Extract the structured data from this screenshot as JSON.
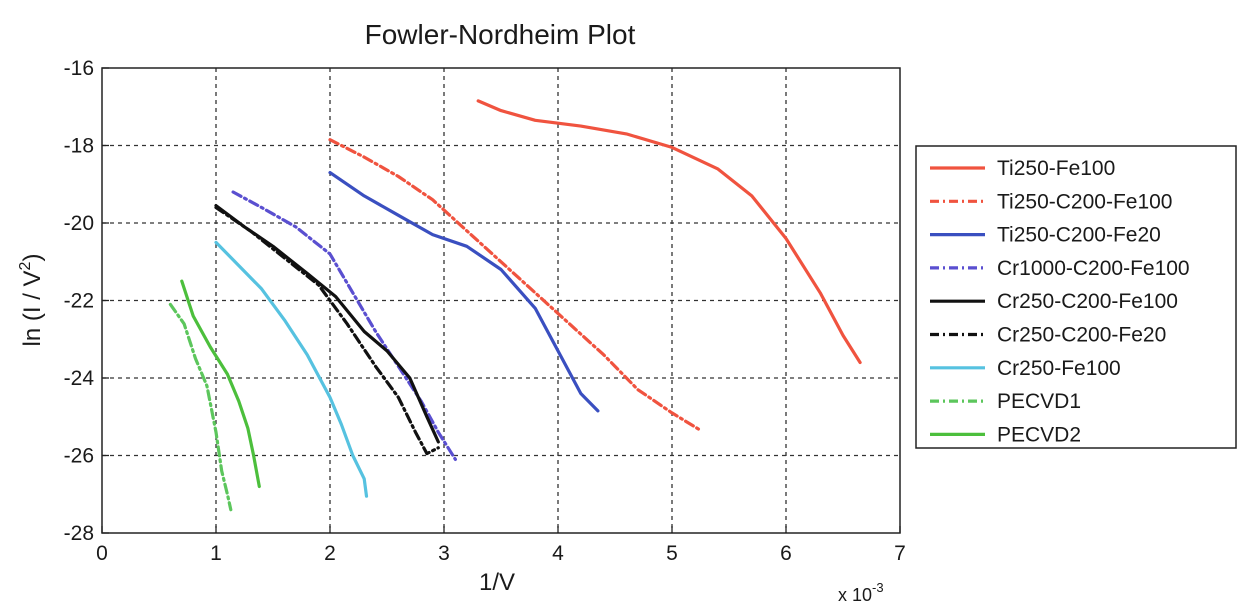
{
  "chart_data": {
    "type": "line",
    "title": "Fowler-Nordheim Plot",
    "xlabel": "1/V",
    "ylabel_main": "ln (I / V",
    "ylabel_sup": "2",
    "ylabel_end": ")",
    "x_multiplier_base": "x 10",
    "x_multiplier_exp": "-3",
    "xlim": [
      0,
      7
    ],
    "ylim": [
      -28,
      -16
    ],
    "xticks": [
      "0",
      "1",
      "2",
      "3",
      "4",
      "5",
      "6",
      "7"
    ],
    "yticks": [
      "-16",
      "-18",
      "-20",
      "-22",
      "-24",
      "-26",
      "-28"
    ],
    "grid": true,
    "legend_position": "right",
    "series": [
      {
        "name": "Ti250-Fe100",
        "color": "#f0533f",
        "dash": "solid",
        "points": [
          [
            3.3,
            -16.85
          ],
          [
            3.5,
            -17.1
          ],
          [
            3.8,
            -17.35
          ],
          [
            4.2,
            -17.5
          ],
          [
            4.6,
            -17.7
          ],
          [
            5.0,
            -18.05
          ],
          [
            5.4,
            -18.6
          ],
          [
            5.7,
            -19.3
          ],
          [
            6.0,
            -20.4
          ],
          [
            6.3,
            -21.8
          ],
          [
            6.5,
            -22.9
          ],
          [
            6.65,
            -23.6
          ]
        ]
      },
      {
        "name": "Ti250-C200-Fe100",
        "color": "#f0533f",
        "dash": "dashdot",
        "points": [
          [
            2.0,
            -17.85
          ],
          [
            2.3,
            -18.3
          ],
          [
            2.6,
            -18.8
          ],
          [
            2.9,
            -19.4
          ],
          [
            3.2,
            -20.2
          ],
          [
            3.5,
            -21.0
          ],
          [
            3.8,
            -21.8
          ],
          [
            4.1,
            -22.6
          ],
          [
            4.4,
            -23.4
          ],
          [
            4.7,
            -24.3
          ],
          [
            5.0,
            -24.9
          ],
          [
            5.25,
            -25.35
          ]
        ]
      },
      {
        "name": "Ti250-C200-Fe20",
        "color": "#3a4fc0",
        "dash": "solid",
        "points": [
          [
            2.0,
            -18.7
          ],
          [
            2.3,
            -19.3
          ],
          [
            2.6,
            -19.8
          ],
          [
            2.9,
            -20.3
          ],
          [
            3.2,
            -20.6
          ],
          [
            3.5,
            -21.2
          ],
          [
            3.8,
            -22.2
          ],
          [
            4.0,
            -23.3
          ],
          [
            4.2,
            -24.4
          ],
          [
            4.35,
            -24.85
          ]
        ]
      },
      {
        "name": "Cr1000-C200-Fe100",
        "color": "#5a4fd0",
        "dash": "dashdot",
        "points": [
          [
            1.15,
            -19.2
          ],
          [
            1.4,
            -19.6
          ],
          [
            1.7,
            -20.1
          ],
          [
            2.0,
            -20.8
          ],
          [
            2.2,
            -21.8
          ],
          [
            2.4,
            -22.8
          ],
          [
            2.6,
            -23.7
          ],
          [
            2.8,
            -24.6
          ],
          [
            2.95,
            -25.4
          ],
          [
            3.1,
            -26.1
          ]
        ]
      },
      {
        "name": "Cr250-C200-Fe100",
        "color": "#111111",
        "dash": "solid",
        "points": [
          [
            1.0,
            -19.55
          ],
          [
            1.25,
            -20.1
          ],
          [
            1.5,
            -20.6
          ],
          [
            1.8,
            -21.3
          ],
          [
            2.05,
            -21.9
          ],
          [
            2.3,
            -22.8
          ],
          [
            2.5,
            -23.3
          ],
          [
            2.7,
            -24.0
          ],
          [
            2.85,
            -25.0
          ],
          [
            2.95,
            -25.65
          ]
        ]
      },
      {
        "name": "Cr250-C200-Fe20",
        "color": "#111111",
        "dash": "dashdot",
        "points": [
          [
            1.0,
            -19.6
          ],
          [
            1.3,
            -20.2
          ],
          [
            1.6,
            -20.9
          ],
          [
            1.9,
            -21.6
          ],
          [
            2.15,
            -22.6
          ],
          [
            2.4,
            -23.7
          ],
          [
            2.6,
            -24.5
          ],
          [
            2.75,
            -25.4
          ],
          [
            2.85,
            -25.95
          ],
          [
            2.95,
            -25.8
          ]
        ]
      },
      {
        "name": "Cr250-Fe100",
        "color": "#56c2e0",
        "dash": "solid",
        "points": [
          [
            1.0,
            -20.5
          ],
          [
            1.2,
            -21.1
          ],
          [
            1.4,
            -21.7
          ],
          [
            1.6,
            -22.5
          ],
          [
            1.8,
            -23.4
          ],
          [
            2.0,
            -24.5
          ],
          [
            2.1,
            -25.2
          ],
          [
            2.2,
            -26.0
          ],
          [
            2.3,
            -26.6
          ],
          [
            2.32,
            -27.05
          ]
        ]
      },
      {
        "name": "PECVD1",
        "color": "#5cc65c",
        "dash": "dashdot",
        "points": [
          [
            0.6,
            -22.1
          ],
          [
            0.72,
            -22.6
          ],
          [
            0.82,
            -23.5
          ],
          [
            0.92,
            -24.2
          ],
          [
            1.0,
            -25.4
          ],
          [
            1.05,
            -26.4
          ],
          [
            1.1,
            -27.0
          ],
          [
            1.13,
            -27.4
          ]
        ]
      },
      {
        "name": "PECVD2",
        "color": "#4cbf3c",
        "dash": "solid",
        "points": [
          [
            0.7,
            -21.5
          ],
          [
            0.8,
            -22.4
          ],
          [
            0.95,
            -23.2
          ],
          [
            1.1,
            -23.9
          ],
          [
            1.2,
            -24.6
          ],
          [
            1.28,
            -25.3
          ],
          [
            1.33,
            -26.0
          ],
          [
            1.38,
            -26.8
          ]
        ]
      }
    ]
  }
}
